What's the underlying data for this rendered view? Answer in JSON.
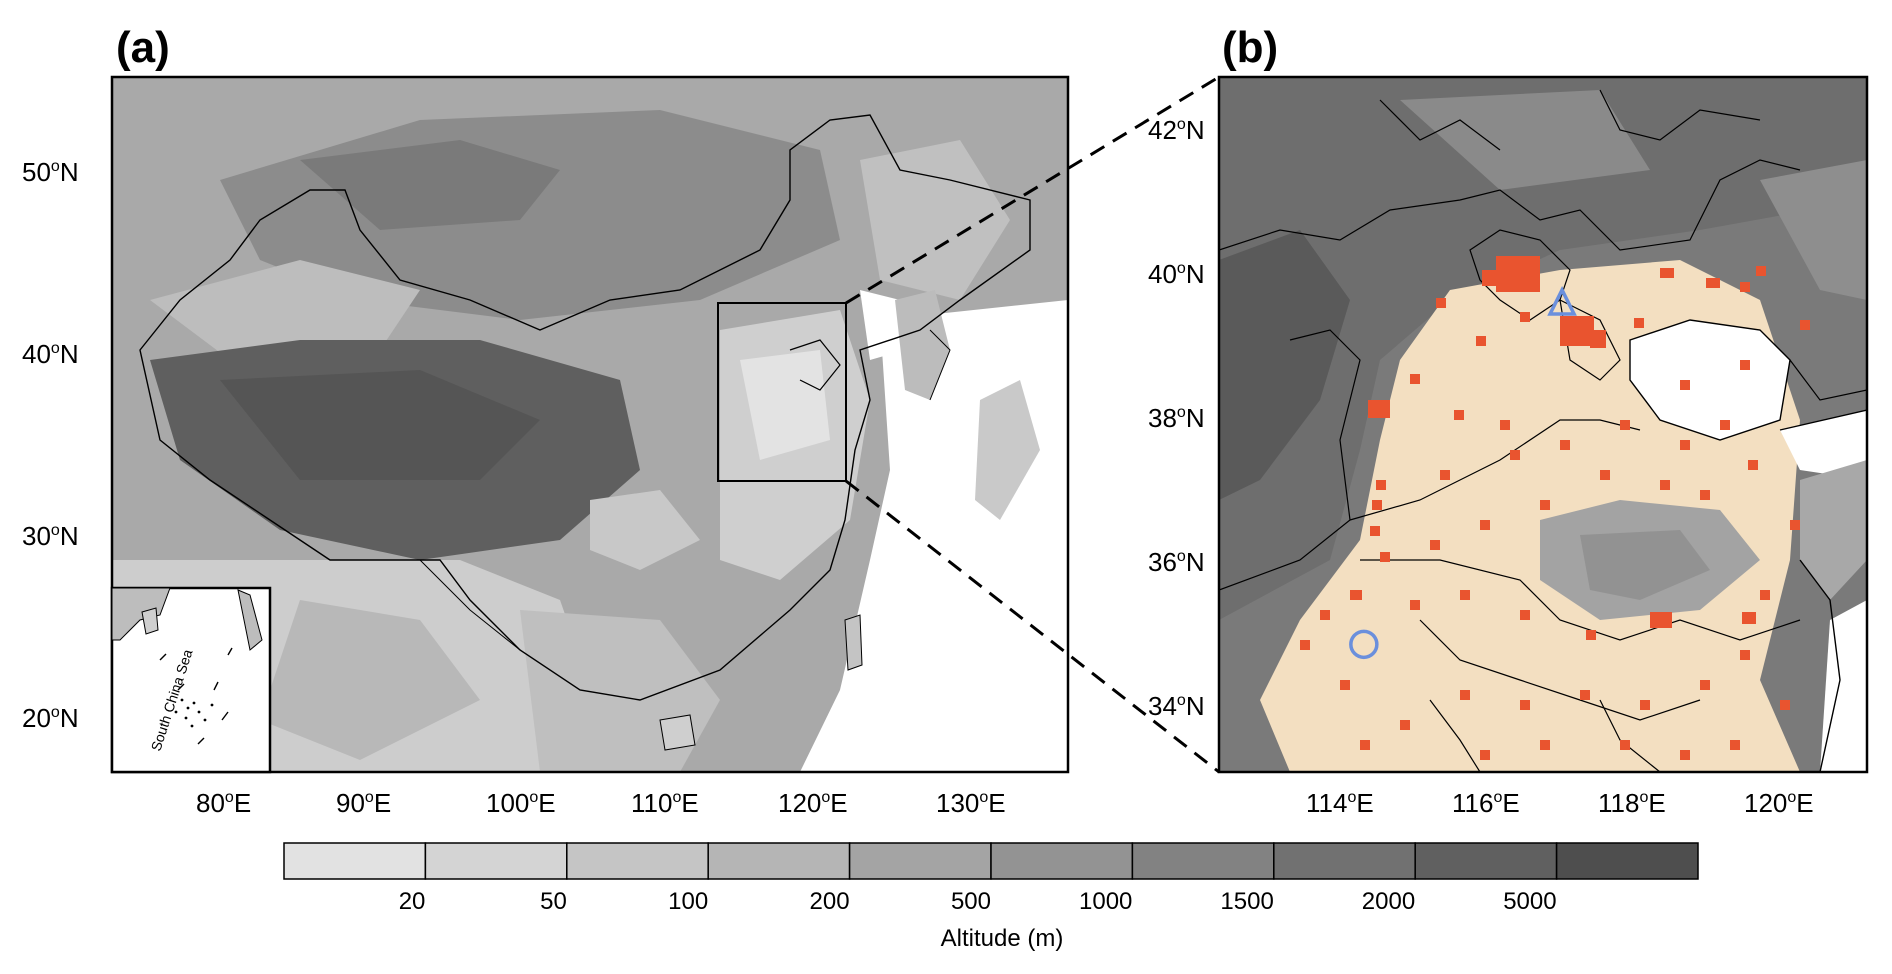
{
  "panels": [
    {
      "label": "(a)",
      "lat_labels": [
        "50oN",
        "40oN",
        "30oN",
        "20oN"
      ],
      "lon_labels": [
        "80oE",
        "90oE",
        "100oE",
        "110oE",
        "120oE",
        "130oE"
      ],
      "inset_label": "South China Sea"
    },
    {
      "label": "(b)",
      "lat_labels": [
        "42oN",
        "40oN",
        "38oN",
        "36oN",
        "34oN"
      ],
      "lon_labels": [
        "114oE",
        "116oE",
        "118oE",
        "120oE"
      ]
    }
  ],
  "colorbar": {
    "title": "Altitude (m)",
    "tick_labels": [
      "20",
      "50",
      "100",
      "200",
      "500",
      "1000",
      "1500",
      "2000",
      "5000"
    ],
    "colors": [
      "#e2e2e2",
      "#d4d4d4",
      "#c5c5c5",
      "#b5b5b5",
      "#a4a4a4",
      "#939393",
      "#828282",
      "#717171",
      "#606060",
      "#4e4e4e"
    ]
  },
  "colors": {
    "plain": "#f3dfc1",
    "urban": "#e9542f",
    "station_marker": "#6a8fdc"
  },
  "markers": [
    {
      "shape": "triangle",
      "lon": 117.0,
      "lat": 39.8
    },
    {
      "shape": "circle",
      "lon": 114.4,
      "lat": 35.0
    }
  ]
}
